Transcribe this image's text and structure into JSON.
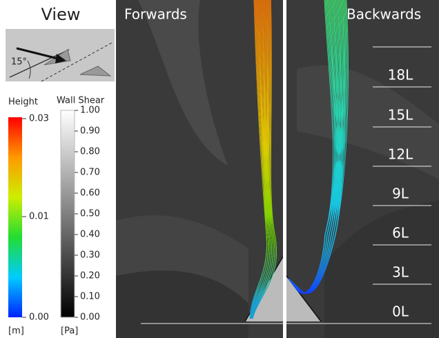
{
  "view": {
    "title": "View",
    "angle": "15°"
  },
  "height_bar": {
    "title": "Height",
    "ticks": [
      "0.03",
      "0.01",
      "0.00"
    ],
    "unit": "[m]"
  },
  "shear_bar": {
    "title": "Wall Shear",
    "ticks": [
      "1.00",
      "0.90",
      "0.80",
      "0.70",
      "0.60",
      "0.50",
      "0.40",
      "0.30",
      "0.20",
      "0.10",
      "0.00"
    ],
    "unit": "[Pa]"
  },
  "panels": [
    {
      "title": "Forwards"
    },
    {
      "title": "Backwards"
    }
  ],
  "distance_labels": [
    "18L",
    "15L",
    "12L",
    "9L",
    "6L",
    "3L",
    "0L"
  ]
}
